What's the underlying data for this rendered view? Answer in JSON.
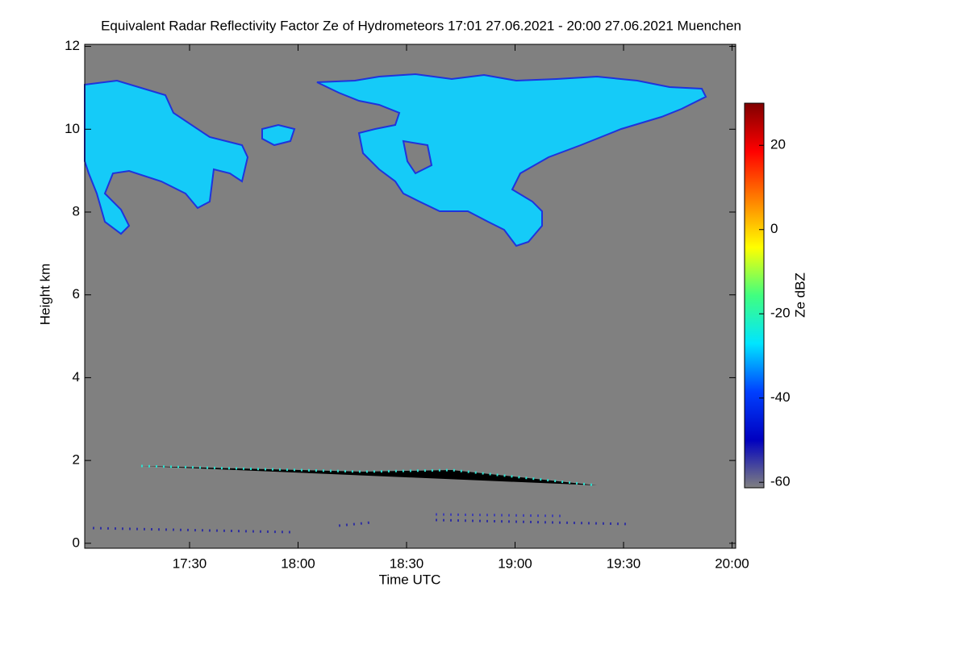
{
  "chart_data": {
    "type": "heatmap",
    "title": "Equivalent Radar Reflectivity Factor Ze of Hydrometeors   17:01 27.06.2021 - 20:00 27.06.2021 Muenchen",
    "x_label": "Time UTC",
    "y_label": "Height km",
    "xlim": [
      17.0167,
      20.0167
    ],
    "xticks": [
      {
        "value": 17.5,
        "label": "17:30"
      },
      {
        "value": 18,
        "label": "18:00"
      },
      {
        "value": 18.5,
        "label": "18:30"
      },
      {
        "value": 19,
        "label": "19:00"
      },
      {
        "value": 19.5,
        "label": "19:30"
      },
      {
        "value": 20,
        "label": "20:00"
      }
    ],
    "ylim": [
      -0.12,
      12.05
    ],
    "yticks": [
      0,
      2,
      4,
      6,
      8,
      10,
      12
    ],
    "background": "#808080",
    "colorbar": {
      "label": "Ze dBZ",
      "lim": [
        -61.3,
        30
      ],
      "ticks": [
        -60,
        -40,
        -20,
        0,
        20
      ],
      "colors": [
        "#808080",
        "#0000c0",
        "#0040ff",
        "#00e5ff",
        "#40ff80",
        "#ffff00",
        "#ff8000",
        "#ff0000",
        "#800000"
      ]
    }
  }
}
